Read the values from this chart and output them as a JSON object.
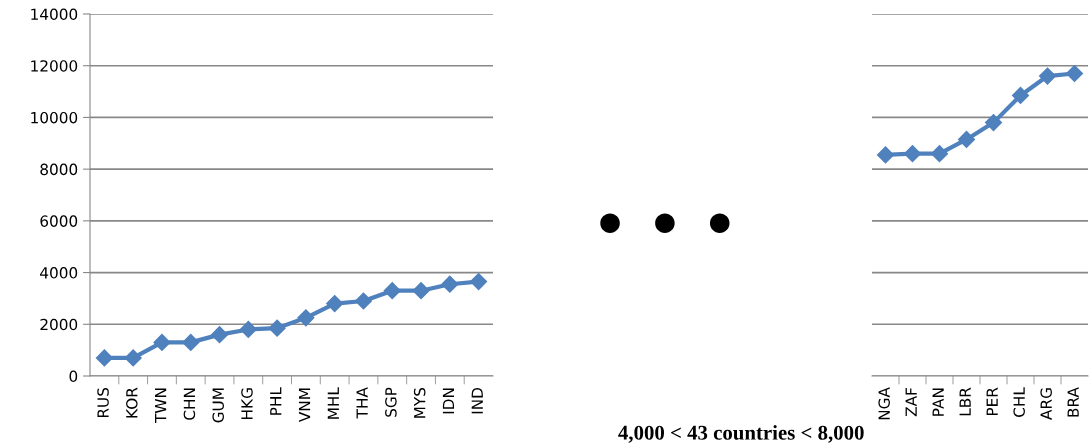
{
  "chart_data": [
    {
      "type": "line",
      "categories": [
        "RUS",
        "KOR",
        "TWN",
        "CHN",
        "GUM",
        "HKG",
        "PHL",
        "VNM",
        "MHL",
        "THA",
        "SGP",
        "MYS",
        "IDN",
        "IND"
      ],
      "series": [
        {
          "color": "#4f81bd",
          "values": [
            700,
            700,
            1300,
            1300,
            1600,
            1800,
            1850,
            2250,
            2800,
            2900,
            3300,
            3300,
            3550,
            3650
          ]
        }
      ],
      "ylim": [
        0,
        14000
      ],
      "yticks": [
        0,
        2000,
        4000,
        6000,
        8000,
        10000,
        12000,
        14000
      ],
      "grid": "y",
      "marker": "diamond",
      "line_style": "solid",
      "annotations": [
        "• • •",
        "4,000 < 43 countries < 8,000"
      ]
    },
    {
      "type": "line",
      "categories": [
        "NGA",
        "ZAF",
        "PAN",
        "LBR",
        "PER",
        "CHL",
        "ARG",
        "BRA"
      ],
      "series": [
        {
          "color": "#4f81bd",
          "values": [
            8550,
            8600,
            8600,
            9150,
            9800,
            10850,
            11600,
            11700
          ]
        }
      ],
      "ylim": [
        0,
        14000
      ],
      "yticks": [
        0,
        2000,
        4000,
        6000,
        8000,
        10000,
        12000,
        14000
      ],
      "grid": "y",
      "marker": "diamond",
      "line_style": "solid",
      "tick_labels": "x"
    }
  ]
}
